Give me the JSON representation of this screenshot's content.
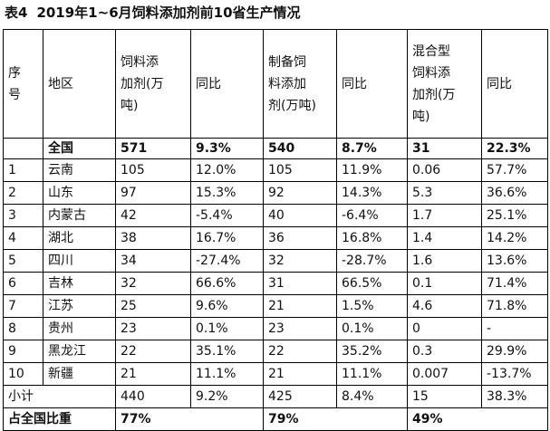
{
  "title": {
    "table_no": "表4",
    "text": "2019年1~6月饲料添加剂前10省生产情况"
  },
  "header": {
    "col_no": [
      "序",
      "号"
    ],
    "col_region": "地区",
    "col_feed_additive": [
      "饲料添",
      "加剂(万",
      "吨)"
    ],
    "col_yoy1": "同比",
    "col_prepared": [
      "制备饲",
      "料添加",
      "剂(万吨)"
    ],
    "col_yoy2": "同比",
    "col_mixed": [
      "混合型",
      "饲料添",
      "加剂(万",
      "吨)"
    ],
    "col_yoy3": "同比"
  },
  "national": {
    "label": "全国",
    "feed_additive": "571",
    "yoy1": "9.3%",
    "prepared": "540",
    "yoy2": "8.7%",
    "mixed": "31",
    "yoy3": "22.3%"
  },
  "rows": [
    {
      "no": "1",
      "region": "云南",
      "feed_additive": "105",
      "yoy1": "12.0%",
      "prepared": "105",
      "yoy2": "11.9%",
      "mixed": "0.06",
      "yoy3": "57.7%"
    },
    {
      "no": "2",
      "region": "山东",
      "feed_additive": "97",
      "yoy1": "15.3%",
      "prepared": "92",
      "yoy2": "14.3%",
      "mixed": "5.3",
      "yoy3": "36.6%"
    },
    {
      "no": "3",
      "region": "内蒙古",
      "feed_additive": "42",
      "yoy1": "-5.4%",
      "prepared": "40",
      "yoy2": "-6.4%",
      "mixed": "1.7",
      "yoy3": "25.1%"
    },
    {
      "no": "4",
      "region": "湖北",
      "feed_additive": "38",
      "yoy1": "16.7%",
      "prepared": "36",
      "yoy2": "16.8%",
      "mixed": "1.4",
      "yoy3": "14.2%"
    },
    {
      "no": "5",
      "region": "四川",
      "feed_additive": "34",
      "yoy1": "-27.4%",
      "prepared": "32",
      "yoy2": "-28.7%",
      "mixed": "1.6",
      "yoy3": "13.6%"
    },
    {
      "no": "6",
      "region": "吉林",
      "feed_additive": "32",
      "yoy1": "66.6%",
      "prepared": "31",
      "yoy2": "66.5%",
      "mixed": "0.1",
      "yoy3": "71.4%"
    },
    {
      "no": "7",
      "region": "江苏",
      "feed_additive": "25",
      "yoy1": "9.6%",
      "prepared": "21",
      "yoy2": "1.5%",
      "mixed": "4.6",
      "yoy3": "71.8%"
    },
    {
      "no": "8",
      "region": "贵州",
      "feed_additive": "23",
      "yoy1": "0.1%",
      "prepared": "23",
      "yoy2": "0.1%",
      "mixed": "0",
      "yoy3": "-"
    },
    {
      "no": "9",
      "region": "黑龙江",
      "feed_additive": "22",
      "yoy1": "35.1%",
      "prepared": "22",
      "yoy2": "35.2%",
      "mixed": "0.3",
      "yoy3": "29.9%"
    },
    {
      "no": "10",
      "region": "新疆",
      "feed_additive": "21",
      "yoy1": "11.1%",
      "prepared": "21",
      "yoy2": "11.1%",
      "mixed": "0.007",
      "yoy3": "-13.7%"
    }
  ],
  "subtotal": {
    "label": "小计",
    "feed_additive": "440",
    "yoy1": "9.2%",
    "prepared": "425",
    "yoy2": "8.4%",
    "mixed": "15",
    "yoy3": "38.3%"
  },
  "share": {
    "label": "占全国比重",
    "feed_additive": "77%",
    "prepared": "79%",
    "mixed": "49%"
  }
}
